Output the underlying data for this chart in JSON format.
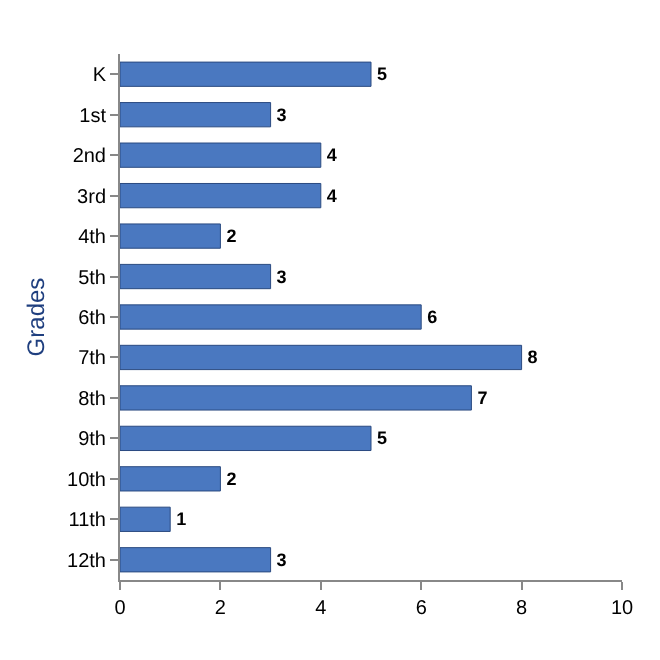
{
  "chart_data": {
    "type": "bar",
    "orientation": "horizontal",
    "ylabel": "Grades",
    "categories": [
      "K",
      "1st",
      "2nd",
      "3rd",
      "4th",
      "5th",
      "6th",
      "7th",
      "8th",
      "9th",
      "10th",
      "11th",
      "12th"
    ],
    "values": [
      5,
      3,
      4,
      4,
      2,
      3,
      6,
      8,
      7,
      5,
      2,
      1,
      3
    ],
    "color": "#4a78c0",
    "xlim": [
      0,
      10
    ],
    "xticks": [
      0,
      2,
      4,
      6,
      8,
      10
    ],
    "data_labels": true
  }
}
